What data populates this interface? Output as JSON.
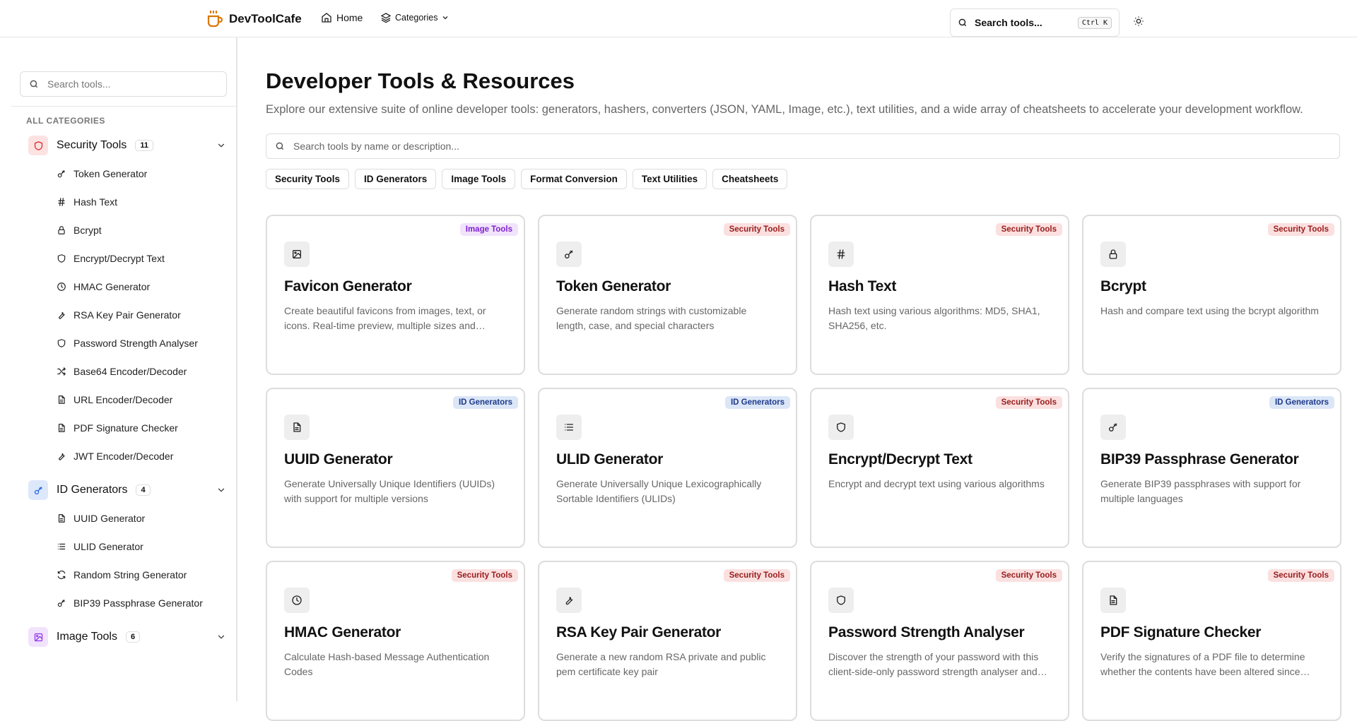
{
  "header": {
    "brand": "DevToolCafe",
    "home": "Home",
    "categories": "Categories",
    "search_label": "Search tools...",
    "shortcut": "Ctrl K"
  },
  "sidebar": {
    "search_placeholder": "Search tools...",
    "all_categories": "ALL CATEGORIES",
    "categories": [
      {
        "name": "Security Tools",
        "count": "11",
        "color": "#dc2626",
        "bg": "#fde2e2",
        "icon": "shield",
        "items": [
          {
            "label": "Token Generator",
            "icon": "key"
          },
          {
            "label": "Hash Text",
            "icon": "hash"
          },
          {
            "label": "Bcrypt",
            "icon": "lock"
          },
          {
            "label": "Encrypt/Decrypt Text",
            "icon": "shield"
          },
          {
            "label": "HMAC Generator",
            "icon": "clock"
          },
          {
            "label": "RSA Key Pair Generator",
            "icon": "wrench"
          },
          {
            "label": "Password Strength Analyser",
            "icon": "shield"
          },
          {
            "label": "Base64 Encoder/Decoder",
            "icon": "shuffle"
          },
          {
            "label": "URL Encoder/Decoder",
            "icon": "file"
          },
          {
            "label": "PDF Signature Checker",
            "icon": "file"
          },
          {
            "label": "JWT Encoder/Decoder",
            "icon": "wrench"
          }
        ]
      },
      {
        "name": "ID Generators",
        "count": "4",
        "color": "#2563eb",
        "bg": "#dde8fb",
        "icon": "key",
        "items": [
          {
            "label": "UUID Generator",
            "icon": "file"
          },
          {
            "label": "ULID Generator",
            "icon": "list"
          },
          {
            "label": "Random String Generator",
            "icon": "refresh"
          },
          {
            "label": "BIP39 Passphrase Generator",
            "icon": "key"
          }
        ]
      },
      {
        "name": "Image Tools",
        "count": "6",
        "color": "#9333ea",
        "bg": "#f1e3fb",
        "icon": "image",
        "items": []
      }
    ]
  },
  "main": {
    "title": "Developer Tools & Resources",
    "subtitle": "Explore our extensive suite of online developer tools: generators, hashers, converters (JSON, YAML, Image, etc.), text utilities, and a wide array of cheatsheets to accelerate your development workflow.",
    "search_placeholder": "Search tools by name or description...",
    "filters": [
      "Security Tools",
      "ID Generators",
      "Image Tools",
      "Format Conversion",
      "Text Utilities",
      "Cheatsheets"
    ],
    "badge_colors": {
      "Security Tools": {
        "bg": "#fbe0e0",
        "fg": "#991b1b"
      },
      "ID Generators": {
        "bg": "#dbe6f7",
        "fg": "#1e3a8a"
      },
      "Image Tools": {
        "bg": "#f1e3fb",
        "fg": "#7e22ce"
      }
    },
    "cards": [
      {
        "title": "Favicon Generator",
        "badge": "Image Tools",
        "icon": "image",
        "desc": "Create beautiful favicons from images, text, or icons. Real-time preview, multiple sizes and formats."
      },
      {
        "title": "Token Generator",
        "badge": "Security Tools",
        "icon": "key",
        "desc": "Generate random strings with customizable length, case, and special characters"
      },
      {
        "title": "Hash Text",
        "badge": "Security Tools",
        "icon": "hash",
        "desc": "Hash text using various algorithms: MD5, SHA1, SHA256, etc."
      },
      {
        "title": "Bcrypt",
        "badge": "Security Tools",
        "icon": "lock",
        "desc": "Hash and compare text using the bcrypt algorithm"
      },
      {
        "title": "UUID Generator",
        "badge": "ID Generators",
        "icon": "file",
        "desc": "Generate Universally Unique Identifiers (UUIDs) with support for multiple versions"
      },
      {
        "title": "ULID Generator",
        "badge": "ID Generators",
        "icon": "list",
        "desc": "Generate Universally Unique Lexicographically Sortable Identifiers (ULIDs)"
      },
      {
        "title": "Encrypt/Decrypt Text",
        "badge": "Security Tools",
        "icon": "shield",
        "desc": "Encrypt and decrypt text using various algorithms"
      },
      {
        "title": "BIP39 Passphrase Generator",
        "badge": "ID Generators",
        "icon": "key",
        "desc": "Generate BIP39 passphrases with support for multiple languages"
      },
      {
        "title": "HMAC Generator",
        "badge": "Security Tools",
        "icon": "clock",
        "desc": "Calculate Hash-based Message Authentication Codes"
      },
      {
        "title": "RSA Key Pair Generator",
        "badge": "Security Tools",
        "icon": "wrench",
        "desc": "Generate a new random RSA private and public pem certificate key pair"
      },
      {
        "title": "Password Strength Analyser",
        "badge": "Security Tools",
        "icon": "shield",
        "desc": "Discover the strength of your password with this client-side-only password strength analyser and crack time estimation tool."
      },
      {
        "title": "PDF Signature Checker",
        "badge": "Security Tools",
        "icon": "file",
        "desc": "Verify the signatures of a PDF file to determine whether the contents have been altered since signing."
      }
    ]
  }
}
